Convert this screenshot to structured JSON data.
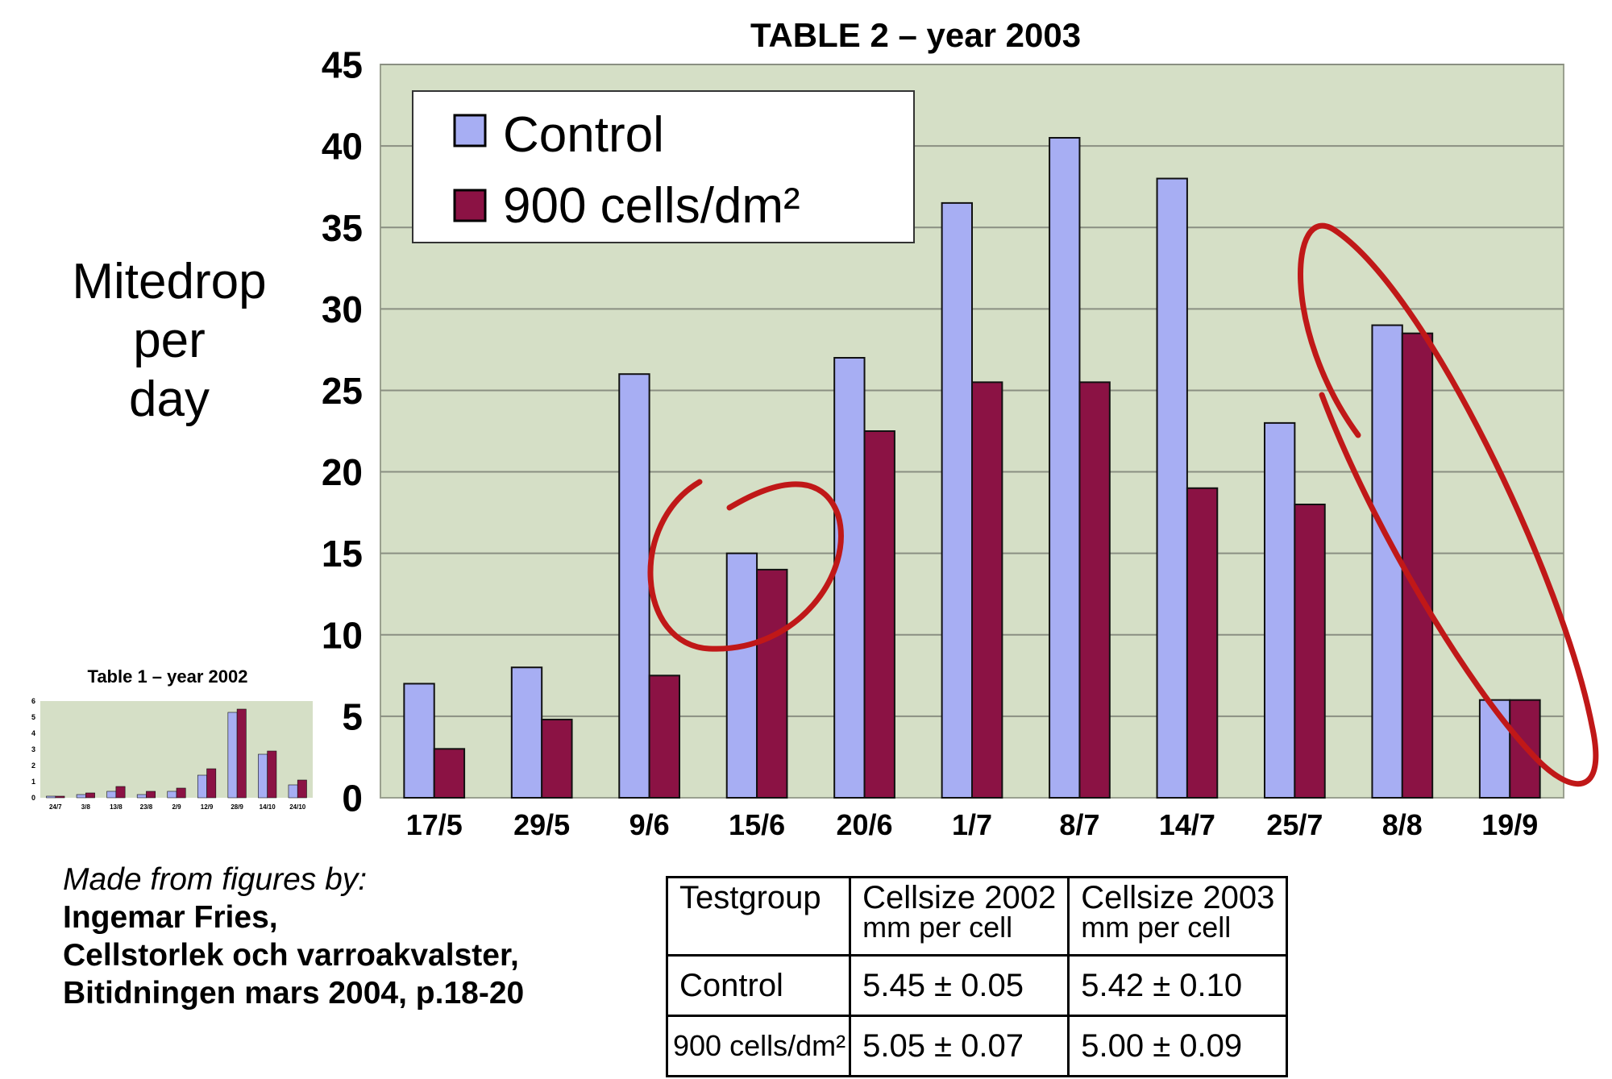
{
  "chart_data": [
    {
      "type": "bar",
      "title": "TABLE 2 – year 2003",
      "ylabel": "Mitedrop per day",
      "ylabel_lines": [
        "Mitedrop",
        "per",
        "day"
      ],
      "xlabel": "",
      "ylim": [
        0,
        45
      ],
      "yticks": [
        0,
        5,
        10,
        15,
        20,
        25,
        30,
        35,
        40,
        45
      ],
      "grid": true,
      "legend_position": "top-left",
      "categories": [
        "17/5",
        "29/5",
        "9/6",
        "15/6",
        "20/6",
        "1/7",
        "8/7",
        "14/7",
        "25/7",
        "8/8",
        "19/9"
      ],
      "series": [
        {
          "name": "Control",
          "color": "#a7aef3",
          "values": [
            7,
            8,
            26,
            15,
            27,
            36.5,
            40.5,
            38,
            23,
            29,
            6
          ]
        },
        {
          "name": "900 cells/dm²",
          "color": "#8b1244",
          "values": [
            3,
            4.8,
            7.5,
            14,
            22.5,
            25.5,
            25.5,
            19,
            18,
            28.5,
            6
          ]
        }
      ],
      "plot_background": "#d5dfc6",
      "annotation_color": "#c01818"
    },
    {
      "type": "bar",
      "title": "Table 1 – year 2002",
      "ylim": [
        0,
        6
      ],
      "yticks": [
        0,
        1,
        2,
        3,
        4,
        5,
        6
      ],
      "categories": [
        "24/7",
        "3/8",
        "13/8",
        "23/8",
        "2/9",
        "12/9",
        "28/9",
        "14/10",
        "24/10"
      ],
      "series": [
        {
          "name": "",
          "color": "#a7aef3",
          "values": [
            0.1,
            0.2,
            0.4,
            0.2,
            0.4,
            1.4,
            5.3,
            2.7,
            0.8
          ]
        },
        {
          "name": "",
          "color": "#8b1244",
          "values": [
            0.1,
            0.3,
            0.7,
            0.4,
            0.6,
            1.8,
            5.5,
            2.9,
            1.1
          ]
        }
      ]
    }
  ],
  "credit": {
    "lead": "Made from figures by:",
    "lines": [
      "Ingemar Fries,",
      "Cellstorlek och varroakvalster,",
      "Bitidningen mars 2004, p.18-20"
    ]
  },
  "cell_table": {
    "headers": [
      {
        "line1": "Testgroup",
        "line2": ""
      },
      {
        "line1": "Cellsize 2002",
        "line2": "mm per cell"
      },
      {
        "line1": "Cellsize 2003",
        "line2": "mm per cell"
      }
    ],
    "rows": [
      [
        "Control",
        "5.45 ± 0.05",
        "5.42 ± 0.10"
      ],
      [
        "900 cells/dm²",
        "5.05 ± 0.07",
        "5.00 ± 0.09"
      ]
    ]
  }
}
